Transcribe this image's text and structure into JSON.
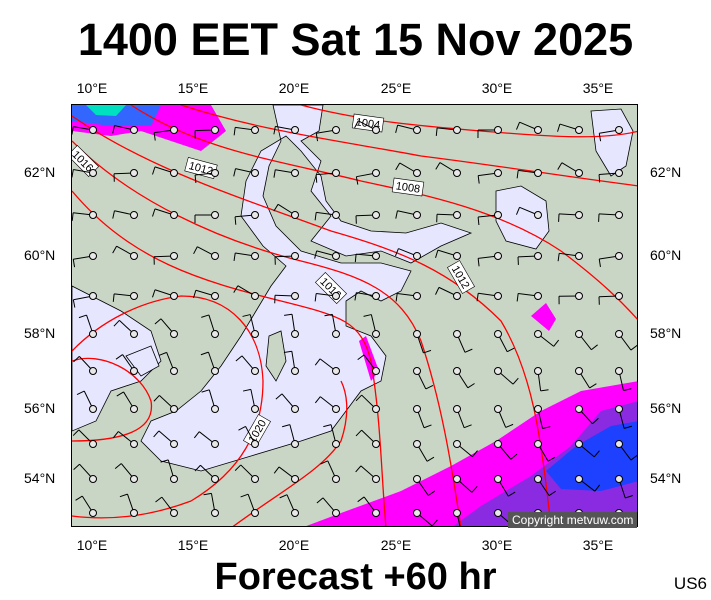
{
  "title": "1400 EET Sat 15 Nov 2025",
  "footer": "Forecast +60 hr",
  "region_code": "US6",
  "copyright": "Copyright metvuw.com",
  "lon_labels": [
    "10°E",
    "15°E",
    "20°E",
    "25°E",
    "30°E",
    "35°E"
  ],
  "lat_labels": [
    "62°N",
    "60°N",
    "58°N",
    "56°N",
    "54°N"
  ],
  "isobar_labels": [
    "1004",
    "1008",
    "1012",
    "1016",
    "1012",
    "1016",
    "1020"
  ],
  "colors": {
    "water": "#e6e6ff",
    "land": "#c9d6c6",
    "isobar": "#ff0000",
    "precip_light": "#ff00ff",
    "precip_mid": "#8a2be2",
    "precip_heavy": "#0033ff"
  }
}
